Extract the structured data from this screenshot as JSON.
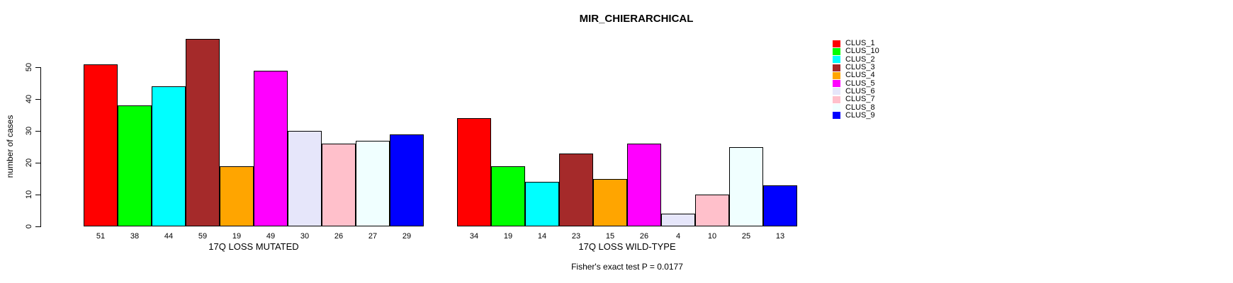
{
  "figure": {
    "background": "#FFFFFF"
  },
  "chart_data": {
    "type": "bar",
    "title": "MIR_CHIERARCHICAL",
    "ylabel": "number of cases",
    "xlabel": "",
    "ylim": [
      0,
      60
    ],
    "yticks": [
      0,
      10,
      20,
      30,
      40,
      50
    ],
    "grid": false,
    "bar_border_color": "#000000",
    "legend_position": "right-top",
    "legend": [
      {
        "label": "CLUS_1",
        "color": "#FF0000"
      },
      {
        "label": "CLUS_10",
        "color": "#00FF00"
      },
      {
        "label": "CLUS_2",
        "color": "#00FFFF"
      },
      {
        "label": "CLUS_3",
        "color": "#A52A2A"
      },
      {
        "label": "CLUS_4",
        "color": "#FFA500"
      },
      {
        "label": "CLUS_5",
        "color": "#FF00FF"
      },
      {
        "label": "CLUS_6",
        "color": "#E6E6FA"
      },
      {
        "label": "CLUS_7",
        "color": "#FFC0CB"
      },
      {
        "label": "CLUS_8",
        "color": "#F0FFFF"
      },
      {
        "label": "CLUS_9",
        "color": "#0000FF"
      }
    ],
    "groups": [
      {
        "label": "17Q LOSS MUTATED",
        "values": [
          51,
          38,
          44,
          59,
          19,
          49,
          30,
          26,
          27,
          29
        ]
      },
      {
        "label": "17Q LOSS WILD-TYPE",
        "values": [
          34,
          19,
          14,
          23,
          15,
          26,
          4,
          10,
          25,
          13
        ]
      }
    ],
    "annotation": "Fisher's exact test P = 0.0177"
  }
}
